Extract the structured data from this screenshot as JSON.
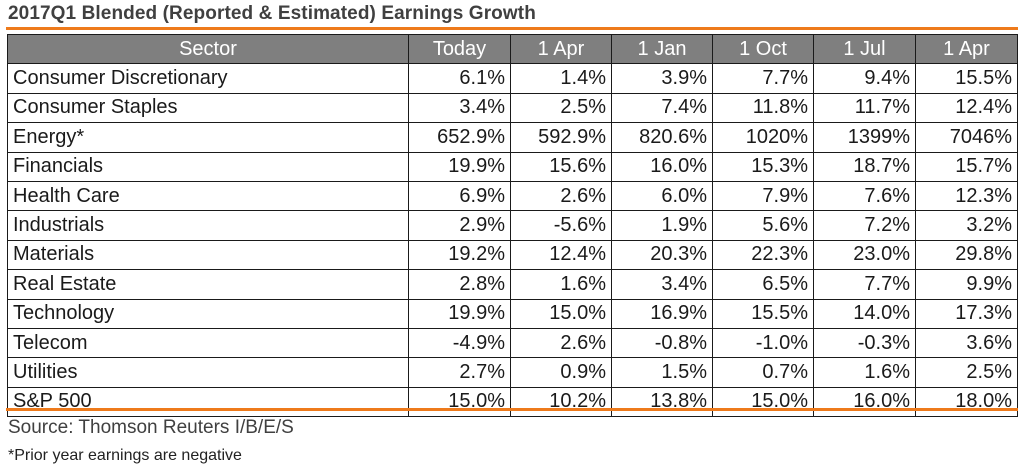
{
  "title": "2017Q1 Blended (Reported & Estimated) Earnings Growth",
  "source": "Source: Thomson Reuters I/B/E/S",
  "footnote": "*Prior year earnings are negative",
  "colors": {
    "accent": "#ee7a1b",
    "header_bg": "#7f7f7f",
    "header_text": "#ffffff"
  },
  "chart_data": {
    "type": "table",
    "title": "2017Q1 Blended (Reported & Estimated) Earnings Growth",
    "columns": [
      "Sector",
      "Today",
      "1 Apr",
      "1 Jan",
      "1 Oct",
      "1 Jul",
      "1 Apr"
    ],
    "rows": [
      [
        "Consumer Discretionary",
        "6.1%",
        "1.4%",
        "3.9%",
        "7.7%",
        "9.4%",
        "15.5%"
      ],
      [
        "Consumer Staples",
        "3.4%",
        "2.5%",
        "7.4%",
        "11.8%",
        "11.7%",
        "12.4%"
      ],
      [
        "Energy*",
        "652.9%",
        "592.9%",
        "820.6%",
        "1020%",
        "1399%",
        "7046%"
      ],
      [
        "Financials",
        "19.9%",
        "15.6%",
        "16.0%",
        "15.3%",
        "18.7%",
        "15.7%"
      ],
      [
        "Health Care",
        "6.9%",
        "2.6%",
        "6.0%",
        "7.9%",
        "7.6%",
        "12.3%"
      ],
      [
        "Industrials",
        "2.9%",
        "-5.6%",
        "1.9%",
        "5.6%",
        "7.2%",
        "3.2%"
      ],
      [
        "Materials",
        "19.2%",
        "12.4%",
        "20.3%",
        "22.3%",
        "23.0%",
        "29.8%"
      ],
      [
        "Real Estate",
        "2.8%",
        "1.6%",
        "3.4%",
        "6.5%",
        "7.7%",
        "9.9%"
      ],
      [
        "Technology",
        "19.9%",
        "15.0%",
        "16.9%",
        "15.5%",
        "14.0%",
        "17.3%"
      ],
      [
        "Telecom",
        "-4.9%",
        "2.6%",
        "-0.8%",
        "-1.0%",
        "-0.3%",
        "3.6%"
      ],
      [
        "Utilities",
        "2.7%",
        "0.9%",
        "1.5%",
        "0.7%",
        "1.6%",
        "2.5%"
      ],
      [
        "S&P 500",
        "15.0%",
        "10.2%",
        "13.8%",
        "15.0%",
        "16.0%",
        "18.0%"
      ]
    ]
  }
}
